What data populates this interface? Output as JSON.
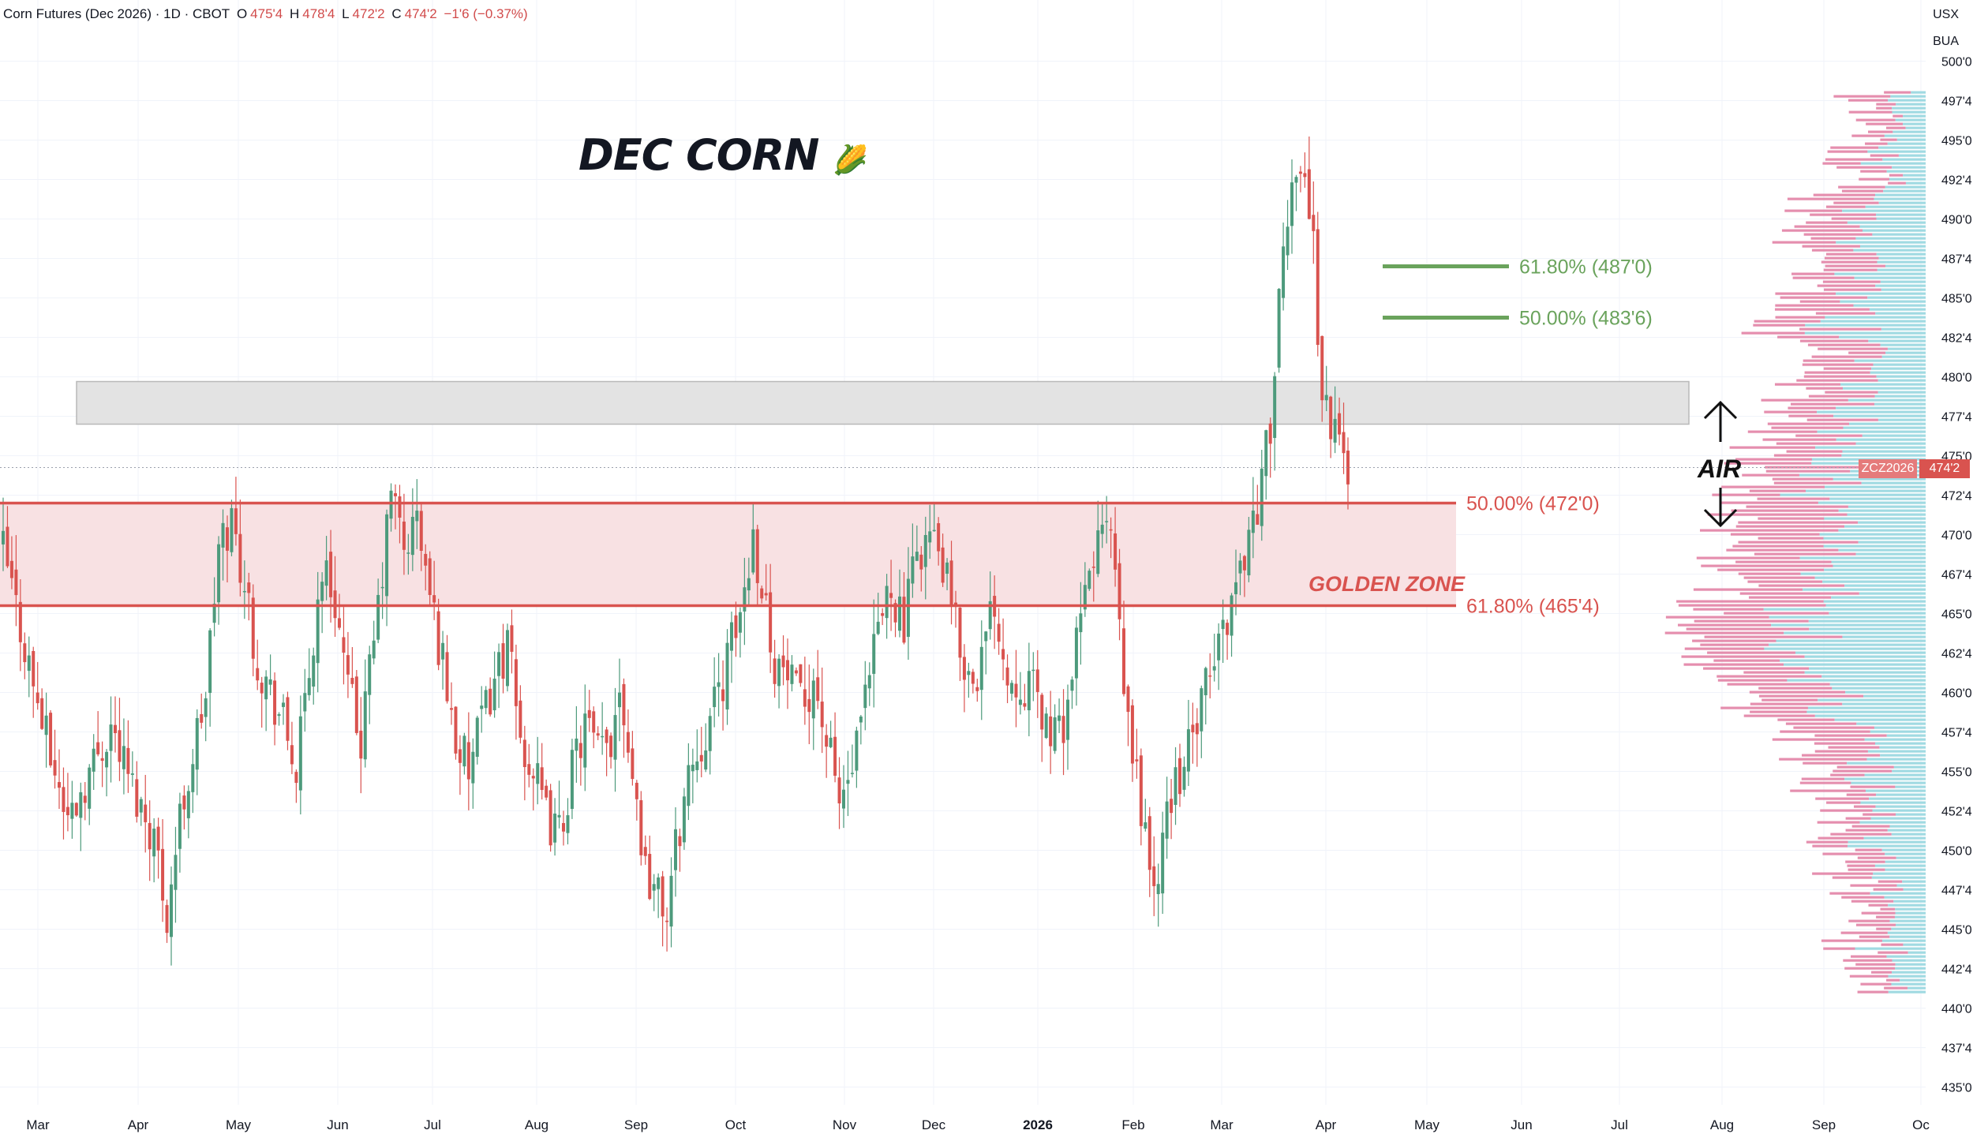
{
  "header": {
    "symbol": "Corn Futures (Dec 2026) · 1D · CBOT",
    "open_label": "O",
    "open": "475'4",
    "high_label": "H",
    "high": "478'4",
    "low_label": "L",
    "low": "472'2",
    "close_label": "C",
    "close": "474'2",
    "change": "−1'6 (−0.37%)"
  },
  "currency": "USX",
  "unit": "BUA",
  "annotations": {
    "title": "DEC CORN",
    "title_emoji": "🌽",
    "air_label": "AIR",
    "golden_zone_label": "GOLDEN ZONE",
    "fib_upper_618": "61.80% (487'0)",
    "fib_upper_50": "50.00% (483'6)",
    "fib_lower_50": "50.00% (472'0)",
    "fib_lower_618": "61.80% (465'4)"
  },
  "price_tag": {
    "symbol": "ZCZ2026",
    "price": "474'2"
  },
  "colors": {
    "up": "#4d9a7c",
    "down": "#d9534f",
    "fib_green": "#6aa35c",
    "fib_red": "#d9534f",
    "zone_fill": "#f8e1e3",
    "resistance_fill": "#e3e3e3",
    "vp_up": "#8fd3dd",
    "vp_down": "#e07aa0"
  },
  "chart_data": {
    "type": "candlestick",
    "title": "",
    "xlabel": "",
    "ylabel": "",
    "ylim": [
      434,
      501
    ],
    "y_ticks": [
      "435'0",
      "437'4",
      "440'0",
      "442'4",
      "445'0",
      "447'4",
      "450'0",
      "452'4",
      "455'0",
      "457'4",
      "460'0",
      "462'4",
      "465'0",
      "467'4",
      "470'0",
      "472'4",
      "475'0",
      "477'4",
      "480'0",
      "482'4",
      "485'0",
      "487'4",
      "490'0",
      "492'4",
      "495'0",
      "497'4",
      "500'0"
    ],
    "x_ticks": [
      "Mar",
      "Apr",
      "May",
      "Jun",
      "Jul",
      "Aug",
      "Sep",
      "Oct",
      "Nov",
      "Dec",
      "2026",
      "Feb",
      "Mar",
      "Apr",
      "May",
      "Jun",
      "Jul",
      "Aug",
      "Sep",
      "Oc"
    ],
    "price_path": [
      [
        0,
        469
      ],
      [
        5,
        463
      ],
      [
        10,
        457
      ],
      [
        15,
        452
      ],
      [
        20,
        455
      ],
      [
        25,
        458
      ],
      [
        30,
        454
      ],
      [
        35,
        451
      ],
      [
        38,
        446
      ],
      [
        41,
        452
      ],
      [
        44,
        456
      ],
      [
        47,
        460
      ],
      [
        50,
        469
      ],
      [
        53,
        471
      ],
      [
        56,
        467
      ],
      [
        59,
        462
      ],
      [
        62,
        460
      ],
      [
        65,
        458
      ],
      [
        68,
        455
      ],
      [
        71,
        461
      ],
      [
        74,
        468
      ],
      [
        77,
        466
      ],
      [
        80,
        460
      ],
      [
        83,
        457
      ],
      [
        86,
        463
      ],
      [
        89,
        470
      ],
      [
        90,
        473
      ],
      [
        93,
        469
      ],
      [
        96,
        471
      ],
      [
        99,
        466
      ],
      [
        102,
        462
      ],
      [
        105,
        457
      ],
      [
        108,
        455
      ],
      [
        111,
        458
      ],
      [
        114,
        461
      ],
      [
        117,
        463
      ],
      [
        120,
        457
      ],
      [
        123,
        455
      ],
      [
        126,
        452
      ],
      [
        129,
        451
      ],
      [
        132,
        455
      ],
      [
        135,
        458
      ],
      [
        138,
        456
      ],
      [
        141,
        457
      ],
      [
        143,
        461
      ],
      [
        146,
        455
      ],
      [
        149,
        449
      ],
      [
        152,
        447
      ],
      [
        154,
        446
      ],
      [
        156,
        450
      ],
      [
        159,
        455
      ],
      [
        162,
        457
      ],
      [
        165,
        459
      ],
      [
        168,
        462
      ],
      [
        171,
        465
      ],
      [
        174,
        470
      ],
      [
        176,
        467
      ],
      [
        179,
        462
      ],
      [
        182,
        461
      ],
      [
        185,
        459
      ],
      [
        188,
        461
      ],
      [
        191,
        457
      ],
      [
        194,
        453
      ],
      [
        197,
        455
      ],
      [
        200,
        459
      ],
      [
        203,
        464
      ],
      [
        206,
        467
      ],
      [
        209,
        464
      ],
      [
        212,
        469
      ],
      [
        215,
        470
      ],
      [
        218,
        468
      ],
      [
        221,
        464
      ],
      [
        224,
        461
      ],
      [
        227,
        462
      ],
      [
        230,
        466
      ],
      [
        233,
        461
      ],
      [
        236,
        461
      ],
      [
        239,
        460
      ],
      [
        242,
        458
      ],
      [
        245,
        457
      ],
      [
        248,
        461
      ],
      [
        251,
        466
      ],
      [
        254,
        470
      ],
      [
        257,
        470
      ],
      [
        260,
        460
      ],
      [
        262,
        456
      ],
      [
        264,
        453
      ],
      [
        266,
        449
      ],
      [
        268,
        447
      ],
      [
        270,
        453
      ],
      [
        273,
        455
      ],
      [
        276,
        457
      ],
      [
        279,
        460
      ],
      [
        282,
        463
      ],
      [
        285,
        466
      ],
      [
        288,
        469
      ],
      [
        291,
        472
      ],
      [
        294,
        477
      ],
      [
        296,
        484
      ],
      [
        298,
        490
      ],
      [
        300,
        494
      ],
      [
        302,
        493
      ],
      [
        304,
        488
      ],
      [
        306,
        479
      ],
      [
        308,
        477
      ],
      [
        310,
        476
      ],
      [
        312,
        474
      ]
    ],
    "fibonacci": [
      {
        "label": "61.80%",
        "value": 487.0
      },
      {
        "label": "50.00%",
        "value": 483.75
      },
      {
        "label": "50.00%",
        "value": 472.0
      },
      {
        "label": "61.80%",
        "value": 465.5
      }
    ],
    "golden_zone": [
      465.5,
      472.0
    ],
    "resistance_zone": [
      477.0,
      479.7
    ],
    "last_price": 474.25,
    "volume_profile_range": [
      441,
      498
    ]
  }
}
